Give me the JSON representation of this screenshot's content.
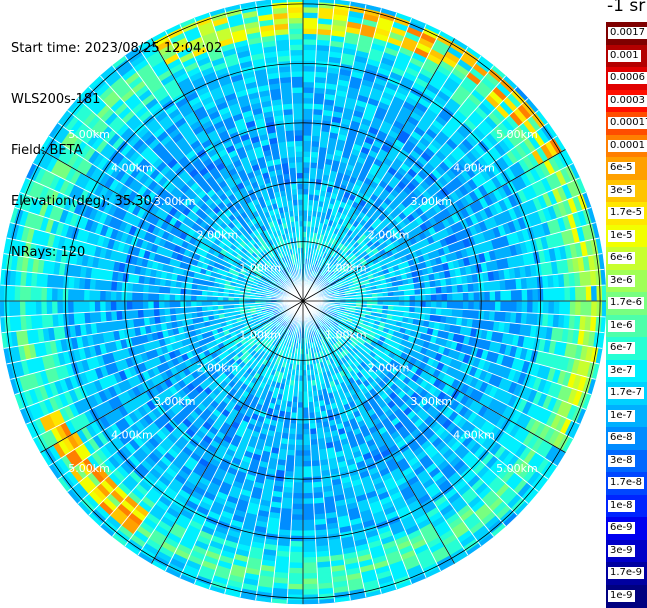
{
  "info": {
    "start_time": "Start time: 2023/08/25 12:04:02",
    "instrument": "WLS200s-181",
    "field": "Field: BETA",
    "elevation": "Elevation(deg): 35.30",
    "nrays": "NRays: 120"
  },
  "colorbar": {
    "unit_label": "-1 sr",
    "levels": [
      {
        "label": "0.0017",
        "color": "#7f0000"
      },
      {
        "label": "0.001",
        "color": "#b30000"
      },
      {
        "label": "0.0006",
        "color": "#e00000"
      },
      {
        "label": "0.0003",
        "color": "#ff0f00"
      },
      {
        "label": "0.00017",
        "color": "#ff4d00"
      },
      {
        "label": "0.0001",
        "color": "#ff7f00"
      },
      {
        "label": "6e-5",
        "color": "#ffa000"
      },
      {
        "label": "3e-5",
        "color": "#ffc400"
      },
      {
        "label": "1.7e-5",
        "color": "#ffe600"
      },
      {
        "label": "1e-5",
        "color": "#f2ff00"
      },
      {
        "label": "6e-6",
        "color": "#c8ff2e"
      },
      {
        "label": "3e-6",
        "color": "#a0ff57"
      },
      {
        "label": "1.7e-6",
        "color": "#78ff80"
      },
      {
        "label": "1e-6",
        "color": "#4dffaa"
      },
      {
        "label": "6e-7",
        "color": "#26ffd4"
      },
      {
        "label": "3e-7",
        "color": "#00f0ff"
      },
      {
        "label": "1.7e-7",
        "color": "#00d2ff"
      },
      {
        "label": "1e-7",
        "color": "#00b0ff"
      },
      {
        "label": "6e-8",
        "color": "#008cff"
      },
      {
        "label": "3e-8",
        "color": "#0068ff"
      },
      {
        "label": "1.7e-8",
        "color": "#0046ff"
      },
      {
        "label": "1e-8",
        "color": "#0024ff"
      },
      {
        "label": "6e-9",
        "color": "#0000f0"
      },
      {
        "label": "3e-9",
        "color": "#0000c8"
      },
      {
        "label": "1.7e-9",
        "color": "#0000a0"
      },
      {
        "label": "1e-9",
        "color": "#000080"
      }
    ]
  },
  "chart_data": {
    "type": "heatmap",
    "projection": "polar (PPI scan, top-down view)",
    "field": "BETA",
    "elevation_deg": 35.3,
    "n_rays": 120,
    "range_unit": "km",
    "range_max_km": 5.1,
    "range_rings_km": [
      1.0,
      2.0,
      3.0,
      4.0,
      5.0
    ],
    "range_ring_labels": [
      "1.00km",
      "2.00km",
      "3.00km",
      "4.00km",
      "5.00km"
    ],
    "spoke_angles_deg": [
      0,
      30,
      60,
      90,
      120,
      150,
      180,
      210,
      240,
      270,
      300,
      330
    ],
    "color_scale": "log",
    "value_range": [
      1e-09,
      0.0017
    ],
    "radial_profile": [
      {
        "range_km": 0.2,
        "beta": 1e-07
      },
      {
        "range_km": 0.5,
        "beta": 1e-07
      },
      {
        "range_km": 0.9,
        "beta": 3e-07
      },
      {
        "range_km": 1.3,
        "beta": 2e-07
      },
      {
        "range_km": 2.0,
        "beta": 1e-07
      },
      {
        "range_km": 3.0,
        "beta": 1e-07
      },
      {
        "range_km": 4.0,
        "beta": 1.5e-07
      },
      {
        "range_km": 4.7,
        "beta": 1e-06
      },
      {
        "range_km": 5.0,
        "beta": 2e-07
      }
    ],
    "enhanced_regions": [
      {
        "azimuth_range_deg": [
          10,
          60
        ],
        "range_km": [
          4.6,
          5.0
        ],
        "beta": 3e-05
      },
      {
        "azimuth_range_deg": [
          215,
          245
        ],
        "range_km": [
          4.4,
          4.9
        ],
        "beta": 3e-05
      },
      {
        "azimuth_range_deg": [
          330,
          10
        ],
        "range_km": [
          4.5,
          5.0
        ],
        "beta": 1e-05
      },
      {
        "azimuth_range_deg": [
          60,
          120
        ],
        "range_km": [
          4.6,
          5.0
        ],
        "beta": 3e-06
      }
    ]
  }
}
